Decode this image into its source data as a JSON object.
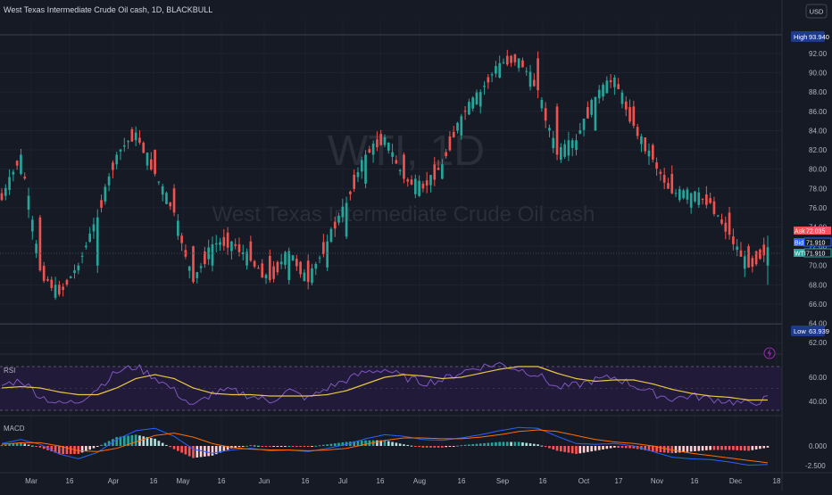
{
  "header": {
    "symbol_title": "West Texas Intermediate Crude Oil cash, 1D, BLACKBULL",
    "currency": "USD"
  },
  "watermark": {
    "ticker": "WTI, 1D",
    "name": "West Texas Intermediate Crude Oil cash"
  },
  "price_labels": {
    "high": {
      "label": "High",
      "value": "93.940"
    },
    "low": {
      "label": "Low",
      "value": "63.939"
    },
    "ask": {
      "label": "Ask",
      "value": "72.035"
    },
    "bid": {
      "label": "Bid",
      "value": "71.910"
    },
    "last": {
      "label": "WTI",
      "value": "71.910"
    }
  },
  "colors": {
    "up": "#26a69a",
    "down": "#ef5350",
    "rsi_line": "#7e57c2",
    "rsi_signal": "#e8c547",
    "macd_line": "#2962ff",
    "signal_line": "#ff6d00",
    "background": "#161a25",
    "text": "#b2b5be",
    "high_badge": "#1e3a8a"
  },
  "indicators": {
    "rsi": {
      "label": "RSI",
      "ticks": [
        "60.00",
        "40.00"
      ]
    },
    "macd": {
      "label": "MACD",
      "ticks": [
        "0.000",
        "-2.500"
      ]
    }
  },
  "chart_data": {
    "type": "candlestick",
    "y_range": [
      61,
      95.7
    ],
    "y_ticks": [
      "62.00",
      "64.00",
      "66.00",
      "68.00",
      "70.00",
      "72.00",
      "74.00",
      "76.00",
      "78.00",
      "80.00",
      "82.00",
      "84.00",
      "86.00",
      "88.00",
      "90.00",
      "92.00"
    ],
    "x_axis_labels": [
      "Mar",
      "16",
      "Apr",
      "16",
      "May",
      "16",
      "Jun",
      "16",
      "Jul",
      "16",
      "Aug",
      "16",
      "Sep",
      "16",
      "Oct",
      "17",
      "Nov",
      "16",
      "Dec",
      "18"
    ],
    "ohlc_anchors": [
      [
        77.5,
        76.8,
        78.4,
        76.0
      ],
      [
        79.5,
        81.5,
        82.1,
        79.0
      ],
      [
        75.0,
        69.5,
        75.8,
        69.0
      ],
      [
        68.0,
        67.0,
        69.6,
        65.0
      ],
      [
        69.5,
        70.0,
        71.2,
        68.7
      ],
      [
        70.0,
        75.0,
        75.2,
        69.5
      ],
      [
        80.5,
        81.5,
        82.2,
        79.8
      ],
      [
        83.0,
        83.8,
        84.6,
        82.0
      ],
      [
        82.0,
        79.5,
        82.8,
        78.9
      ],
      [
        78.0,
        75.5,
        78.6,
        74.5
      ],
      [
        72.0,
        68.3,
        72.5,
        64.0
      ],
      [
        70.0,
        72.2,
        72.8,
        69.5
      ],
      [
        71.5,
        72.5,
        73.4,
        70.8
      ],
      [
        72.5,
        70.5,
        73.0,
        70.0
      ],
      [
        71.0,
        68.5,
        71.6,
        68.0
      ],
      [
        68.5,
        71.5,
        72.0,
        68.2
      ],
      [
        70.5,
        68.3,
        71.0,
        67.3
      ],
      [
        69.8,
        72.5,
        73.1,
        69.5
      ],
      [
        73.0,
        76.5,
        77.0,
        72.5
      ],
      [
        78.5,
        81.5,
        82.4,
        78.0
      ],
      [
        82.5,
        83.3,
        84.6,
        82.0
      ],
      [
        81.5,
        79.0,
        82.3,
        78.5
      ],
      [
        78.5,
        78.0,
        79.8,
        77.5
      ],
      [
        79.0,
        80.5,
        81.4,
        78.6
      ],
      [
        83.5,
        85.5,
        86.5,
        83.0
      ],
      [
        86.5,
        88.0,
        88.9,
        85.8
      ],
      [
        89.5,
        91.0,
        92.6,
        88.8
      ],
      [
        90.5,
        91.5,
        93.6,
        89.6
      ],
      [
        91.5,
        88.2,
        92.3,
        87.6
      ],
      [
        86.5,
        81.5,
        87.3,
        80.8
      ],
      [
        82.0,
        83.0,
        84.0,
        81.4
      ],
      [
        84.0,
        87.5,
        88.1,
        83.6
      ],
      [
        88.5,
        89.5,
        90.0,
        87.5
      ],
      [
        86.5,
        84.5,
        87.4,
        84.0
      ],
      [
        82.5,
        81.0,
        83.2,
        80.0
      ],
      [
        79.5,
        77.5,
        80.5,
        76.6
      ],
      [
        76.0,
        77.5,
        79.0,
        75.0
      ],
      [
        77.0,
        76.5,
        78.6,
        75.9
      ],
      [
        75.5,
        73.2,
        76.4,
        72.8
      ],
      [
        72.0,
        69.8,
        72.5,
        69.0
      ],
      [
        70.0,
        71.9,
        73.1,
        68.0
      ]
    ],
    "rsi_series": [
      52,
      56,
      44,
      38,
      40,
      50,
      62,
      66,
      58,
      48,
      36,
      46,
      48,
      44,
      40,
      48,
      42,
      50,
      56,
      62,
      64,
      58,
      54,
      56,
      62,
      66,
      68,
      64,
      60,
      50,
      52,
      56,
      58,
      52,
      46,
      42,
      44,
      42,
      40,
      38,
      42
    ],
    "rsi_signal_series": [
      50,
      51,
      50,
      47,
      45,
      45,
      50,
      57,
      60,
      57,
      50,
      46,
      45,
      45,
      44,
      44,
      44,
      45,
      48,
      53,
      58,
      60,
      59,
      57,
      58,
      61,
      64,
      66,
      66,
      61,
      57,
      55,
      56,
      56,
      53,
      49,
      46,
      44,
      43,
      41,
      41
    ],
    "macd_series": [
      0.3,
      0.8,
      0.2,
      -1.0,
      -1.6,
      -0.8,
      0.8,
      1.9,
      2.2,
      1.2,
      -0.4,
      -0.9,
      -0.5,
      -0.3,
      -0.6,
      -0.5,
      -0.7,
      -0.3,
      0.2,
      0.9,
      1.4,
      1.2,
      0.8,
      0.7,
      1.0,
      1.4,
      1.9,
      2.3,
      2.2,
      1.2,
      0.3,
      0.2,
      0.3,
      0.0,
      -0.7,
      -1.4,
      -1.6,
      -1.7,
      -2.0,
      -2.4,
      -2.3
    ],
    "signal_series": [
      0.2,
      0.4,
      0.4,
      0.0,
      -0.6,
      -0.7,
      -0.3,
      0.5,
      1.3,
      1.6,
      1.1,
      0.3,
      -0.2,
      -0.4,
      -0.5,
      -0.5,
      -0.6,
      -0.5,
      -0.3,
      0.2,
      0.7,
      1.0,
      1.0,
      0.9,
      0.9,
      1.1,
      1.4,
      1.8,
      2.0,
      1.8,
      1.3,
      0.8,
      0.5,
      0.3,
      0.0,
      -0.5,
      -0.9,
      -1.2,
      -1.5,
      -1.8,
      -2.1
    ]
  }
}
